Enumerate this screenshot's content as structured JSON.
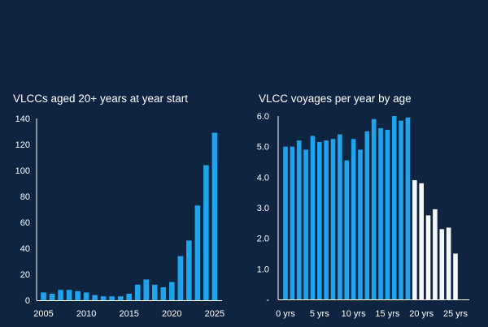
{
  "colors": {
    "background": "#0e2440",
    "accent": "#1ea4ec",
    "secondary": "#f4f6f8",
    "axis": "#ffffff"
  },
  "chart_data": [
    {
      "type": "bar",
      "title": "VLCCs aged 20+ years at year start",
      "xlabel": "",
      "ylabel": "",
      "x": [
        2005,
        2006,
        2007,
        2008,
        2009,
        2010,
        2011,
        2012,
        2013,
        2014,
        2015,
        2016,
        2017,
        2018,
        2019,
        2020,
        2021,
        2022,
        2023,
        2024,
        2025
      ],
      "values": [
        6,
        5,
        8,
        8,
        7,
        6,
        4,
        3,
        3,
        3,
        5,
        12,
        16,
        12,
        10,
        14,
        34,
        46,
        73,
        104,
        129
      ],
      "x_ticks": [
        "2005",
        "2010",
        "2015",
        "2020",
        "2025"
      ],
      "y_ticks": [
        "0",
        "20",
        "40",
        "60",
        "80",
        "100",
        "120",
        "140"
      ],
      "ylim": [
        0,
        140
      ],
      "grid": false,
      "color": "#1ea4ec"
    },
    {
      "type": "bar",
      "title": "VLCC voyages per year by age",
      "xlabel": "",
      "ylabel": "",
      "x": [
        0,
        1,
        2,
        3,
        4,
        5,
        6,
        7,
        8,
        9,
        10,
        11,
        12,
        13,
        14,
        15,
        16,
        17,
        18,
        19,
        20,
        21,
        22,
        23,
        24,
        25
      ],
      "values": [
        5.0,
        5.0,
        5.2,
        4.9,
        5.35,
        5.15,
        5.2,
        5.25,
        5.4,
        4.55,
        5.25,
        4.9,
        5.5,
        5.9,
        5.6,
        5.55,
        6.0,
        5.85,
        5.95,
        3.9,
        3.8,
        2.75,
        2.95,
        2.3,
        2.35,
        1.5
      ],
      "highlight_from_x": 19,
      "x_ticks": [
        "0 yrs",
        "5 yrs",
        "10 yrs",
        "15 yrs",
        "20 yrs",
        "25 yrs"
      ],
      "y_ticks": [
        "-",
        "1.0",
        "2.0",
        "3.0",
        "4.0",
        "5.0",
        "6.0"
      ],
      "ylim": [
        0,
        6
      ],
      "grid": false,
      "colors": [
        "#1ea4ec",
        "#f4f6f8"
      ]
    }
  ]
}
